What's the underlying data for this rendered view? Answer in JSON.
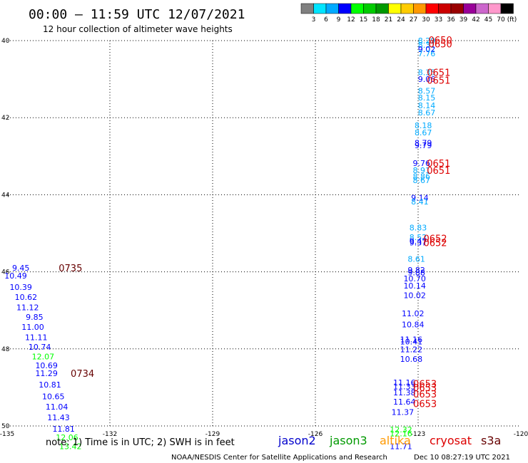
{
  "header": {
    "title": "00:00 – 11:59 UTC 12/07/2021",
    "subtitle": "12 hour collection of altimeter wave heights"
  },
  "color_scale": {
    "labels": [
      "3",
      "6",
      "9",
      "12",
      "15",
      "18",
      "21",
      "24",
      "27",
      "30",
      "33",
      "36",
      "39",
      "42",
      "45",
      "70"
    ],
    "unit": "(ft)",
    "colors": [
      "#808080",
      "#00e5ff",
      "#00aaff",
      "#0000ff",
      "#00ff00",
      "#00cc00",
      "#009900",
      "#ffff00",
      "#ffcc00",
      "#ff9900",
      "#ff0000",
      "#cc0000",
      "#990000",
      "#990099",
      "#cc66cc",
      "#ff99cc",
      "#000000"
    ]
  },
  "footer": {
    "note": "note: 1) Time is in UTC; 2) SWH is in feet",
    "credit": "NOAA/NESDIS Center for Satellite Applications and Research",
    "timestamp": "Dec 10 08:27:19 UTC 2021"
  },
  "legend": [
    {
      "name": "jason2",
      "color": "#0000cc"
    },
    {
      "name": "jason3",
      "color": "#009900"
    },
    {
      "name": "altika",
      "color": "#ff9900"
    },
    {
      "name": "cryosat",
      "color": "#dd0000"
    },
    {
      "name": "s3a",
      "color": "#660000"
    }
  ],
  "chart_data": {
    "type": "scatter",
    "title": "00:00 – 11:59 UTC 12/07/2021",
    "subtitle": "12 hour collection of altimeter wave heights",
    "xlim": [
      -135,
      -120
    ],
    "ylim": [
      40,
      50
    ],
    "y_inverted": true,
    "xticks": [
      "-135",
      "-132",
      "-129",
      "-126",
      "-123",
      "-120"
    ],
    "yticks": [
      "40",
      "42",
      "44",
      "46",
      "48",
      "50"
    ],
    "grid": true,
    "values": [
      {
        "lon": -122.75,
        "lat": 40.0,
        "v": "8.29",
        "color": "#00aaff"
      },
      {
        "lon": -122.75,
        "lat": 40.11,
        "v": "8.31",
        "color": "#00aaff"
      },
      {
        "lon": -122.75,
        "lat": 40.22,
        "v": "9.02",
        "color": "#0000ff"
      },
      {
        "lon": -122.75,
        "lat": 40.33,
        "v": "7.76",
        "color": "#00aaff"
      },
      {
        "lon": -122.75,
        "lat": 40.82,
        "v": "8.35",
        "color": "#00aaff"
      },
      {
        "lon": -122.75,
        "lat": 41.0,
        "v": "9.06",
        "color": "#0000ff"
      },
      {
        "lon": -122.75,
        "lat": 41.3,
        "v": "8.57",
        "color": "#00aaff"
      },
      {
        "lon": -122.75,
        "lat": 41.48,
        "v": "8.15",
        "color": "#00aaff"
      },
      {
        "lon": -122.75,
        "lat": 41.68,
        "v": "8.14",
        "color": "#00aaff"
      },
      {
        "lon": -122.75,
        "lat": 41.87,
        "v": "8.67",
        "color": "#00aaff"
      },
      {
        "lon": -122.85,
        "lat": 42.2,
        "v": "8.18",
        "color": "#00aaff"
      },
      {
        "lon": -122.85,
        "lat": 42.38,
        "v": "8.67",
        "color": "#00aaff"
      },
      {
        "lon": -122.85,
        "lat": 42.65,
        "v": "8.79",
        "color": "#0000ff"
      },
      {
        "lon": -122.85,
        "lat": 42.72,
        "v": "9.79",
        "color": "#0000ff"
      },
      {
        "lon": -122.9,
        "lat": 43.18,
        "v": "9.76",
        "color": "#0000ff"
      },
      {
        "lon": -122.9,
        "lat": 43.36,
        "v": "8.91",
        "color": "#00aaff"
      },
      {
        "lon": -122.9,
        "lat": 43.52,
        "v": "8.86",
        "color": "#00aaff"
      },
      {
        "lon": -122.9,
        "lat": 43.62,
        "v": "8.67",
        "color": "#00aaff"
      },
      {
        "lon": -122.95,
        "lat": 44.08,
        "v": "9.14",
        "color": "#0000ff"
      },
      {
        "lon": -122.95,
        "lat": 44.18,
        "v": "8.41",
        "color": "#00aaff"
      },
      {
        "lon": -123.0,
        "lat": 44.85,
        "v": "8.83",
        "color": "#00aaff"
      },
      {
        "lon": -123.0,
        "lat": 45.1,
        "v": "8.52",
        "color": "#00aaff"
      },
      {
        "lon": -123.0,
        "lat": 45.24,
        "v": "9.37",
        "color": "#0000ff"
      },
      {
        "lon": -123.0,
        "lat": 45.2,
        "v": "9.47",
        "color": "#0000ff"
      },
      {
        "lon": -123.05,
        "lat": 45.67,
        "v": "8.61",
        "color": "#00aaff"
      },
      {
        "lon": -123.05,
        "lat": 45.95,
        "v": "9.82",
        "color": "#0000ff"
      },
      {
        "lon": -123.05,
        "lat": 46.02,
        "v": "9.88",
        "color": "#0000ff"
      },
      {
        "lon": -123.1,
        "lat": 46.17,
        "v": "10.70",
        "color": "#0000ff"
      },
      {
        "lon": -123.1,
        "lat": 46.36,
        "v": "10.14",
        "color": "#0000ff"
      },
      {
        "lon": -123.1,
        "lat": 46.61,
        "v": "10.02",
        "color": "#0000ff"
      },
      {
        "lon": -123.15,
        "lat": 47.08,
        "v": "11.02",
        "color": "#0000ff"
      },
      {
        "lon": -123.15,
        "lat": 47.37,
        "v": "10.84",
        "color": "#0000ff"
      },
      {
        "lon": -123.2,
        "lat": 47.75,
        "v": "11.16",
        "color": "#0000ff"
      },
      {
        "lon": -123.2,
        "lat": 47.81,
        "v": "10.41",
        "color": "#0000ff"
      },
      {
        "lon": -123.2,
        "lat": 48.01,
        "v": "11.22",
        "color": "#0000ff"
      },
      {
        "lon": -123.2,
        "lat": 48.26,
        "v": "10.68",
        "color": "#0000ff"
      },
      {
        "lon": -123.4,
        "lat": 48.87,
        "v": "11.16",
        "color": "#0000ff"
      },
      {
        "lon": -123.4,
        "lat": 48.97,
        "v": "11.33",
        "color": "#0000ff"
      },
      {
        "lon": -123.4,
        "lat": 49.13,
        "v": "11.38",
        "color": "#0000ff"
      },
      {
        "lon": -123.4,
        "lat": 49.37,
        "v": "11.64",
        "color": "#0000ff"
      },
      {
        "lon": -123.45,
        "lat": 49.64,
        "v": "11.37",
        "color": "#0000ff"
      },
      {
        "lon": -123.5,
        "lat": 50.09,
        "v": "12.32",
        "color": "#00ff00"
      },
      {
        "lon": -123.5,
        "lat": 50.19,
        "v": "12.16",
        "color": "#00ff00"
      },
      {
        "lon": -123.5,
        "lat": 50.53,
        "v": "11.71",
        "color": "#0000ff"
      },
      {
        "lon": -134.6,
        "lat": 45.9,
        "v": "9.45",
        "color": "#0000ff"
      },
      {
        "lon": -134.75,
        "lat": 46.1,
        "v": "10.49",
        "color": "#0000ff"
      },
      {
        "lon": -134.6,
        "lat": 46.4,
        "v": "10.39",
        "color": "#0000ff"
      },
      {
        "lon": -134.45,
        "lat": 46.65,
        "v": "10.62",
        "color": "#0000ff"
      },
      {
        "lon": -134.4,
        "lat": 46.92,
        "v": "11.12",
        "color": "#0000ff"
      },
      {
        "lon": -134.2,
        "lat": 47.17,
        "v": "9.85",
        "color": "#0000ff"
      },
      {
        "lon": -134.25,
        "lat": 47.43,
        "v": "11.00",
        "color": "#0000ff"
      },
      {
        "lon": -134.15,
        "lat": 47.7,
        "v": "11.11",
        "color": "#0000ff"
      },
      {
        "lon": -134.05,
        "lat": 47.95,
        "v": "10.74",
        "color": "#0000ff"
      },
      {
        "lon": -133.95,
        "lat": 48.2,
        "v": "12.07",
        "color": "#00ff00"
      },
      {
        "lon": -133.85,
        "lat": 48.43,
        "v": "10.69",
        "color": "#0000ff"
      },
      {
        "lon": -133.85,
        "lat": 48.63,
        "v": "11.29",
        "color": "#0000ff"
      },
      {
        "lon": -133.75,
        "lat": 48.93,
        "v": "10.81",
        "color": "#0000ff"
      },
      {
        "lon": -133.65,
        "lat": 49.23,
        "v": "10.65",
        "color": "#0000ff"
      },
      {
        "lon": -133.55,
        "lat": 49.5,
        "v": "11.04",
        "color": "#0000ff"
      },
      {
        "lon": -133.5,
        "lat": 49.78,
        "v": "11.43",
        "color": "#0000ff"
      },
      {
        "lon": -133.35,
        "lat": 50.07,
        "v": "11.81",
        "color": "#0000ff"
      },
      {
        "lon": -133.25,
        "lat": 50.3,
        "v": "12.06",
        "color": "#00ff00"
      },
      {
        "lon": -133.15,
        "lat": 50.53,
        "v": "13.42",
        "color": "#00ff00"
      }
    ],
    "times": [
      {
        "lon": -122.35,
        "lat": 39.98,
        "t": "0650",
        "color": "#dd0000"
      },
      {
        "lon": -122.35,
        "lat": 40.08,
        "t": "0650",
        "color": "#dd0000"
      },
      {
        "lon": -122.4,
        "lat": 40.82,
        "t": "0651",
        "color": "#dd0000"
      },
      {
        "lon": -122.4,
        "lat": 41.03,
        "t": "0651",
        "color": "#dd0000"
      },
      {
        "lon": -122.4,
        "lat": 43.18,
        "t": "0651",
        "color": "#dd0000"
      },
      {
        "lon": -122.4,
        "lat": 43.36,
        "t": "0651",
        "color": "#dd0000"
      },
      {
        "lon": -122.5,
        "lat": 45.13,
        "t": "0652",
        "color": "#dd0000"
      },
      {
        "lon": -122.5,
        "lat": 45.24,
        "t": "0652",
        "color": "#dd0000"
      },
      {
        "lon": -122.8,
        "lat": 48.9,
        "t": "0653",
        "color": "#dd0000"
      },
      {
        "lon": -122.8,
        "lat": 49.0,
        "t": "0653",
        "color": "#dd0000"
      },
      {
        "lon": -122.8,
        "lat": 49.17,
        "t": "0653",
        "color": "#dd0000"
      },
      {
        "lon": -122.8,
        "lat": 49.42,
        "t": "0653",
        "color": "#dd0000"
      },
      {
        "lon": -133.15,
        "lat": 45.9,
        "t": "0735",
        "color": "#660000"
      },
      {
        "lon": -132.8,
        "lat": 48.63,
        "t": "0734",
        "color": "#660000"
      }
    ]
  }
}
